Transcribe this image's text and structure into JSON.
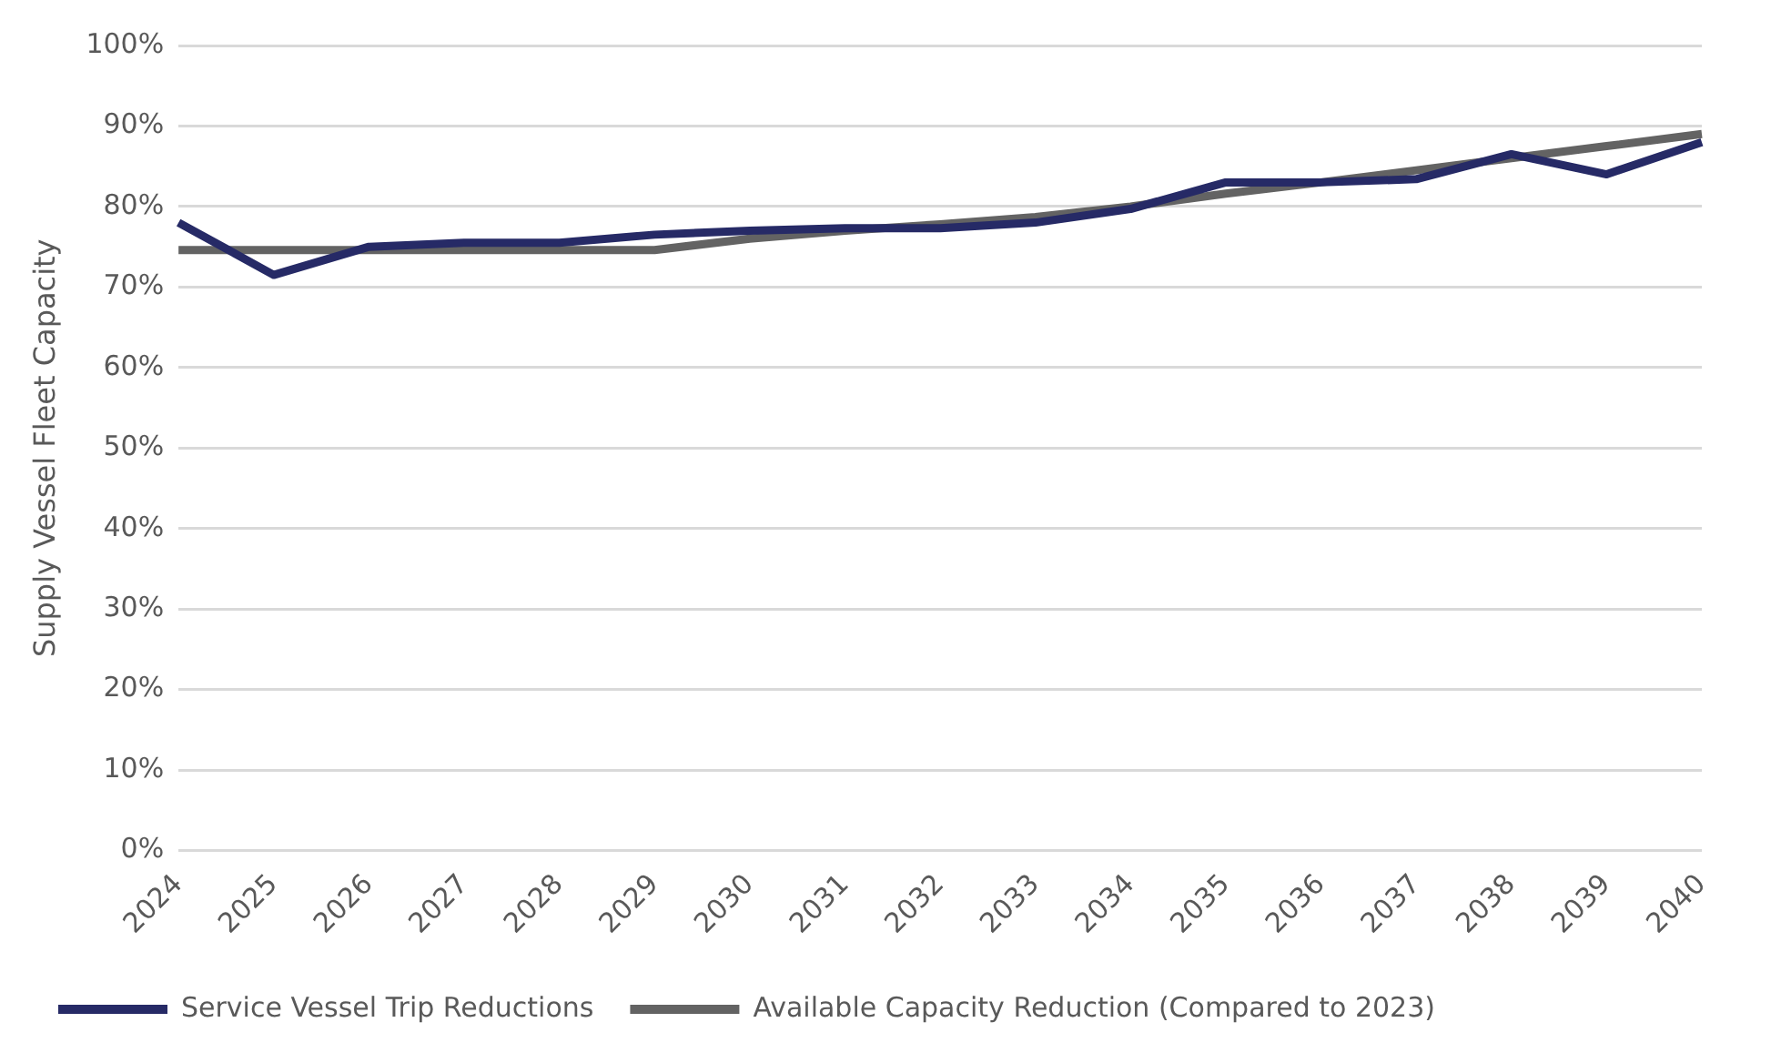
{
  "chart_data": {
    "type": "line",
    "ylabel": "Supply Vessel Fleet Capacity",
    "categories": [
      "2024",
      "2025",
      "2026",
      "2027",
      "2028",
      "2029",
      "2030",
      "2031",
      "2032",
      "2033",
      "2034",
      "2035",
      "2036",
      "2037",
      "2038",
      "2039",
      "2040"
    ],
    "series": [
      {
        "name": "Service Vessel Trip Reductions",
        "color": "#262a66",
        "values": [
          78,
          71.5,
          75,
          75.5,
          75.5,
          76.5,
          77,
          77.3,
          77.3,
          78,
          79.7,
          83,
          83,
          83.4,
          86.5,
          84,
          88
        ]
      },
      {
        "name": "Available Capacity Reduction (Compared to 2023)",
        "color": "#636363",
        "values": [
          74.6,
          74.6,
          74.6,
          74.6,
          74.6,
          74.6,
          76,
          77,
          77.8,
          78.7,
          80,
          81.6,
          83,
          84.5,
          86,
          87.5,
          89
        ]
      }
    ],
    "ylim": [
      0,
      100
    ],
    "yticks": [
      {
        "value": 0,
        "label": "0%"
      },
      {
        "value": 10,
        "label": "10%"
      },
      {
        "value": 20,
        "label": "20%"
      },
      {
        "value": 30,
        "label": "30%"
      },
      {
        "value": 40,
        "label": "40%"
      },
      {
        "value": 50,
        "label": "50%"
      },
      {
        "value": 60,
        "label": "60%"
      },
      {
        "value": 70,
        "label": "70%"
      },
      {
        "value": 80,
        "label": "80%"
      },
      {
        "value": 90,
        "label": "90%"
      },
      {
        "value": 100,
        "label": "100%"
      }
    ],
    "grid": "y",
    "legend": "bottom",
    "marker": "none",
    "line_style": "solid"
  }
}
